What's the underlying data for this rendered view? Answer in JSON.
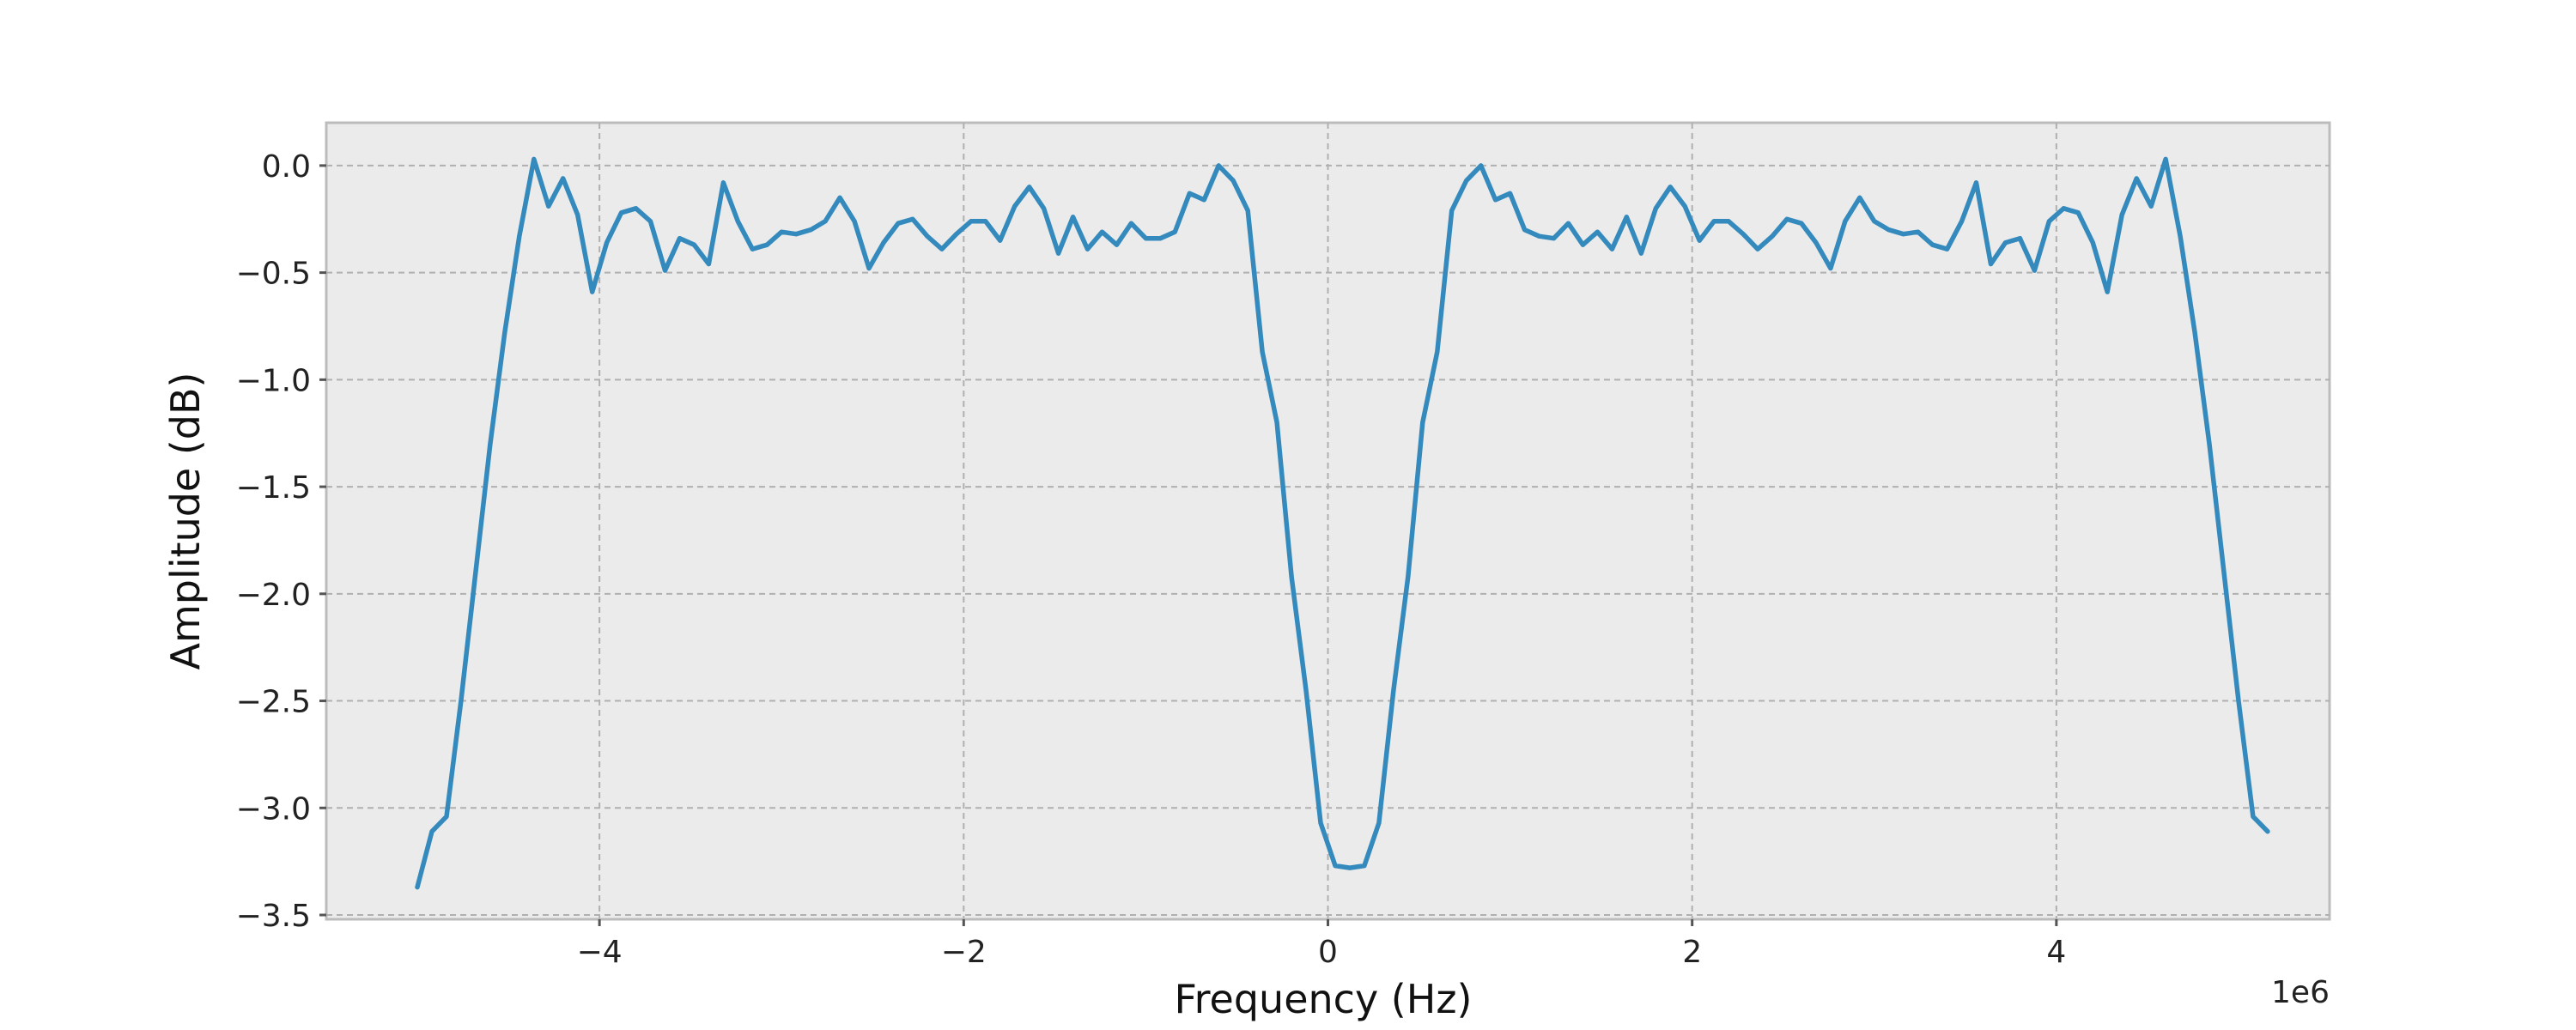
{
  "chart_data": {
    "type": "line",
    "xlabel": "Frequency (Hz)",
    "ylabel": "Amplitude (dB)",
    "x_offset_label": "1e6",
    "x_scale": 1000000,
    "xlim": [
      -5500000,
      5500000
    ],
    "ylim": [
      -3.52,
      0.2
    ],
    "xticks": [
      -4000000,
      -2000000,
      0,
      2000000,
      4000000
    ],
    "xtick_labels": [
      "−4",
      "−2",
      "0",
      "2",
      "4"
    ],
    "yticks": [
      0.0,
      -0.5,
      -1.0,
      -1.5,
      -2.0,
      -2.5,
      -3.0,
      -3.5
    ],
    "ytick_labels": [
      "0.0",
      "−0.5",
      "−1.0",
      "−1.5",
      "−2.0",
      "−2.5",
      "−3.0",
      "−3.5"
    ],
    "grid": true,
    "background": "#ebebeb",
    "series": [
      {
        "color": "#348abd",
        "points": [
          [
            -5000000,
            -3.37
          ],
          [
            -4920000,
            -3.11
          ],
          [
            -4840000,
            -3.04
          ],
          [
            -4760000,
            -2.5
          ],
          [
            -4680000,
            -1.9
          ],
          [
            -4600000,
            -1.3
          ],
          [
            -4520000,
            -0.78
          ],
          [
            -4440000,
            -0.33
          ],
          [
            -4360000,
            0.03
          ],
          [
            -4280000,
            -0.19
          ],
          [
            -4200000,
            -0.06
          ],
          [
            -4120000,
            -0.23
          ],
          [
            -4040000,
            -0.59
          ],
          [
            -3960000,
            -0.36
          ],
          [
            -3880000,
            -0.22
          ],
          [
            -3800000,
            -0.2
          ],
          [
            -3720000,
            -0.26
          ],
          [
            -3640000,
            -0.49
          ],
          [
            -3560000,
            -0.34
          ],
          [
            -3480000,
            -0.37
          ],
          [
            -3400000,
            -0.46
          ],
          [
            -3320000,
            -0.08
          ],
          [
            -3240000,
            -0.26
          ],
          [
            -3160000,
            -0.39
          ],
          [
            -3080000,
            -0.37
          ],
          [
            -3000000,
            -0.31
          ],
          [
            -2920000,
            -0.32
          ],
          [
            -2840000,
            -0.3
          ],
          [
            -2760000,
            -0.26
          ],
          [
            -2680000,
            -0.15
          ],
          [
            -2600000,
            -0.26
          ],
          [
            -2520000,
            -0.48
          ],
          [
            -2440000,
            -0.36
          ],
          [
            -2360000,
            -0.27
          ],
          [
            -2280000,
            -0.25
          ],
          [
            -2200000,
            -0.33
          ],
          [
            -2120000,
            -0.39
          ],
          [
            -2040000,
            -0.32
          ],
          [
            -1960000,
            -0.26
          ],
          [
            -1880000,
            -0.26
          ],
          [
            -1800000,
            -0.35
          ],
          [
            -1720000,
            -0.19
          ],
          [
            -1640000,
            -0.1
          ],
          [
            -1560000,
            -0.2
          ],
          [
            -1480000,
            -0.41
          ],
          [
            -1400000,
            -0.24
          ],
          [
            -1320000,
            -0.39
          ],
          [
            -1240000,
            -0.31
          ],
          [
            -1160000,
            -0.37
          ],
          [
            -1080000,
            -0.27
          ],
          [
            -1000000,
            -0.34
          ],
          [
            -920000,
            -0.34
          ],
          [
            -840000,
            -0.31
          ],
          [
            -760000,
            -0.13
          ],
          [
            -680000,
            -0.16
          ],
          [
            -600000,
            0.0
          ],
          [
            -520000,
            -0.07
          ],
          [
            -440000,
            -0.21
          ],
          [
            -360000,
            -0.87
          ],
          [
            -280000,
            -1.2
          ],
          [
            -200000,
            -1.92
          ],
          [
            -120000,
            -2.45
          ],
          [
            -40000,
            -3.07
          ],
          [
            40000,
            -3.27
          ],
          [
            120000,
            -3.28
          ],
          [
            200000,
            -3.27
          ],
          [
            280000,
            -3.07
          ],
          [
            360000,
            -2.45
          ],
          [
            440000,
            -1.92
          ],
          [
            520000,
            -1.2
          ],
          [
            600000,
            -0.87
          ],
          [
            680000,
            -0.21
          ],
          [
            760000,
            -0.07
          ],
          [
            840000,
            0.0
          ],
          [
            920000,
            -0.16
          ],
          [
            1000000,
            -0.13
          ],
          [
            1080000,
            -0.3
          ],
          [
            1160000,
            -0.33
          ],
          [
            1240000,
            -0.34
          ],
          [
            1320000,
            -0.27
          ],
          [
            1400000,
            -0.37
          ],
          [
            1480000,
            -0.31
          ],
          [
            1560000,
            -0.39
          ],
          [
            1640000,
            -0.24
          ],
          [
            1720000,
            -0.41
          ],
          [
            1800000,
            -0.2
          ],
          [
            1880000,
            -0.1
          ],
          [
            1960000,
            -0.19
          ],
          [
            2040000,
            -0.35
          ],
          [
            2120000,
            -0.26
          ],
          [
            2200000,
            -0.26
          ],
          [
            2280000,
            -0.32
          ],
          [
            2360000,
            -0.39
          ],
          [
            2440000,
            -0.33
          ],
          [
            2520000,
            -0.25
          ],
          [
            2600000,
            -0.27
          ],
          [
            2680000,
            -0.36
          ],
          [
            2760000,
            -0.48
          ],
          [
            2840000,
            -0.26
          ],
          [
            2920000,
            -0.15
          ],
          [
            3000000,
            -0.26
          ],
          [
            3080000,
            -0.3
          ],
          [
            3160000,
            -0.32
          ],
          [
            3240000,
            -0.31
          ],
          [
            3320000,
            -0.37
          ],
          [
            3400000,
            -0.39
          ],
          [
            3480000,
            -0.26
          ],
          [
            3560000,
            -0.08
          ],
          [
            3640000,
            -0.46
          ],
          [
            3720000,
            -0.36
          ],
          [
            3800000,
            -0.34
          ],
          [
            3880000,
            -0.49
          ],
          [
            3960000,
            -0.26
          ],
          [
            4040000,
            -0.2
          ],
          [
            4120000,
            -0.22
          ],
          [
            4200000,
            -0.36
          ],
          [
            4280000,
            -0.59
          ],
          [
            4360000,
            -0.23
          ],
          [
            4440000,
            -0.06
          ],
          [
            4520000,
            -0.19
          ],
          [
            4600000,
            0.03
          ],
          [
            4680000,
            -0.33
          ],
          [
            4760000,
            -0.78
          ],
          [
            4840000,
            -1.3
          ],
          [
            4920000,
            -1.9
          ],
          [
            5000000,
            -2.5
          ],
          [
            5080000,
            -3.04
          ],
          [
            5160000,
            -3.11
          ]
        ]
      }
    ]
  }
}
